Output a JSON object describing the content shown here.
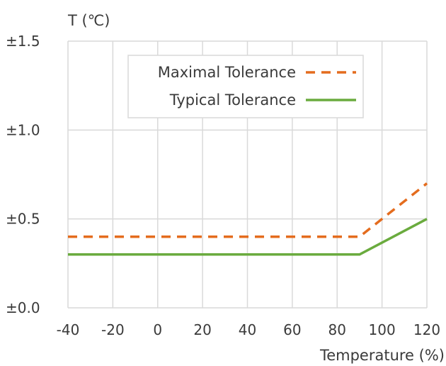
{
  "chart_data": {
    "type": "line",
    "title": "",
    "ylabel": "T (℃)",
    "xlabel": "Temperature (%)",
    "xlim": [
      -40,
      120
    ],
    "ylim": [
      0,
      1.5
    ],
    "x_ticks": [
      -40,
      -20,
      0,
      20,
      40,
      60,
      80,
      100,
      120
    ],
    "x_tick_labels": [
      "-40",
      "-20",
      "0",
      "20",
      "40",
      "60",
      "80",
      "100",
      "120"
    ],
    "y_ticks": [
      0,
      0.5,
      1.0,
      1.5
    ],
    "y_tick_labels": [
      "±0.0",
      "±0.5",
      "±1.0",
      "±1.5"
    ],
    "grid": true,
    "legend_position": "top-right",
    "series": [
      {
        "name": "Maximal Tolerance",
        "style": "dashed",
        "color": "#e46c1e",
        "x": [
          -40,
          90,
          120
        ],
        "y": [
          0.4,
          0.4,
          0.7
        ]
      },
      {
        "name": "Typical Tolerance",
        "style": "solid",
        "color": "#6aab3e",
        "x": [
          -40,
          90,
          120
        ],
        "y": [
          0.3,
          0.3,
          0.5
        ]
      }
    ]
  }
}
